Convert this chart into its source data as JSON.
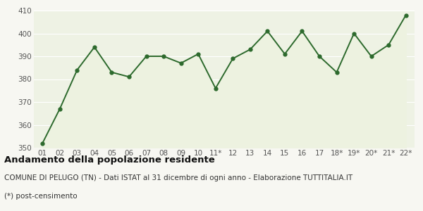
{
  "x_labels": [
    "01",
    "02",
    "03",
    "04",
    "05",
    "06",
    "07",
    "08",
    "09",
    "10",
    "11*",
    "12",
    "13",
    "14",
    "15",
    "16",
    "17",
    "18*",
    "19*",
    "20*",
    "21*",
    "22*"
  ],
  "y_values": [
    352,
    367,
    384,
    394,
    383,
    381,
    390,
    390,
    387,
    391,
    376,
    389,
    393,
    401,
    391,
    401,
    390,
    383,
    400,
    390,
    395,
    408
  ],
  "line_color": "#2d6a2d",
  "fill_color": "#edf2e0",
  "marker": "o",
  "marker_size": 3.5,
  "line_width": 1.4,
  "ylim": [
    350,
    410
  ],
  "yticks": [
    350,
    360,
    370,
    380,
    390,
    400,
    410
  ],
  "bg_color": "#f7f7f2",
  "plot_bg_color": "#eef2e4",
  "grid_color": "#ffffff",
  "title": "Andamento della popolazione residente",
  "subtitle": "COMUNE DI PELUGO (TN) - Dati ISTAT al 31 dicembre di ogni anno - Elaborazione TUTTITALIA.IT",
  "footnote": "(*) post-censimento",
  "title_fontsize": 9.5,
  "subtitle_fontsize": 7.5,
  "footnote_fontsize": 7.5,
  "tick_fontsize": 7.5,
  "axis_label_color": "#555555"
}
